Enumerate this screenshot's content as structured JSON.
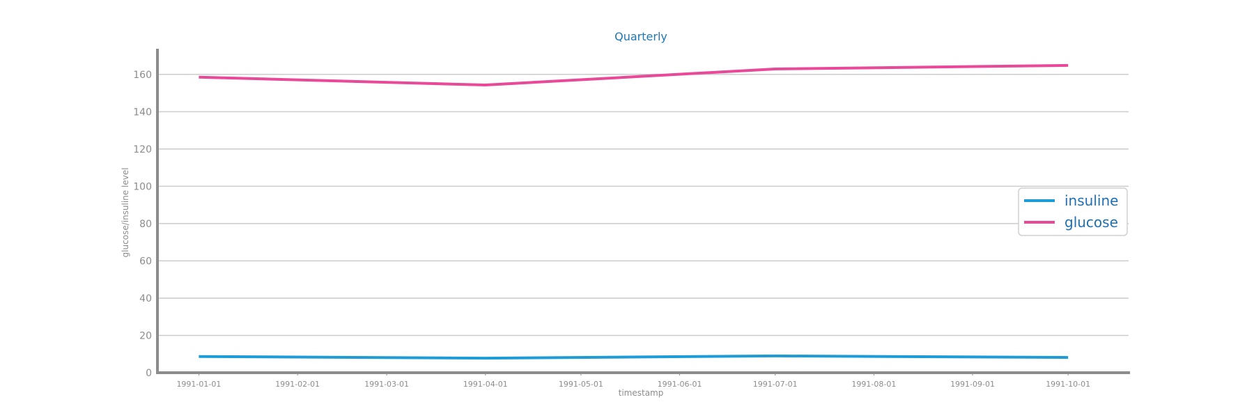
{
  "chart_data": {
    "type": "line",
    "title": "Quarterly",
    "xlabel": "timestamp",
    "ylabel": "glucose/insuline level",
    "x": [
      "1991-01-01",
      "1991-04-01",
      "1991-07-01",
      "1991-10-01"
    ],
    "x_ticks": [
      "1991-01-01",
      "1991-02-01",
      "1991-03-01",
      "1991-04-01",
      "1991-05-01",
      "1991-06-01",
      "1991-07-01",
      "1991-08-01",
      "1991-09-01",
      "1991-10-01"
    ],
    "y_ticks": [
      0,
      20,
      40,
      60,
      80,
      100,
      120,
      140,
      160
    ],
    "xlim": [
      "1990-12-19",
      "1991-10-20"
    ],
    "ylim": [
      0,
      173
    ],
    "grid": "horizontal",
    "legend_position": "right",
    "series": [
      {
        "name": "insuline",
        "color": "#1e9cd7",
        "values": [
          8.7,
          7.8,
          9.0,
          8.2
        ]
      },
      {
        "name": "glucose",
        "color": "#e84a99",
        "values": [
          158.5,
          154.3,
          162.9,
          164.8
        ]
      }
    ],
    "colors": {
      "title": "#1f77b4",
      "axis": "#8c8c8c",
      "grid": "#cccccc",
      "legend_text": "#1f6fb5"
    }
  }
}
